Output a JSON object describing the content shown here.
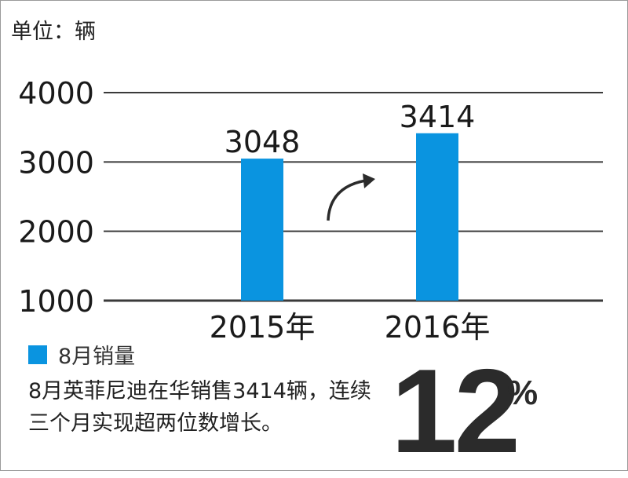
{
  "unit_label": "单位：辆",
  "legend": {
    "label": "8月销量",
    "color": "#0a94e0"
  },
  "caption": "8月英菲尼迪在华销售3414辆，连续三个月实现超两位数增长。",
  "highlight": {
    "value": "12",
    "unit": "%"
  },
  "trend_arrow_icon": "curved-arrow-up-right",
  "chart_data": {
    "type": "bar",
    "categories": [
      "2015年",
      "2016年"
    ],
    "series": [
      {
        "name": "8月销量",
        "values": [
          3048,
          3414
        ],
        "color": "#0a94e0"
      }
    ],
    "data_labels": [
      "3048",
      "3414"
    ],
    "ylim": [
      1000,
      4000
    ],
    "yticks": [
      "1000",
      "2000",
      "3000",
      "4000"
    ],
    "grid": true,
    "gridline_color": "#3a3a3a"
  }
}
